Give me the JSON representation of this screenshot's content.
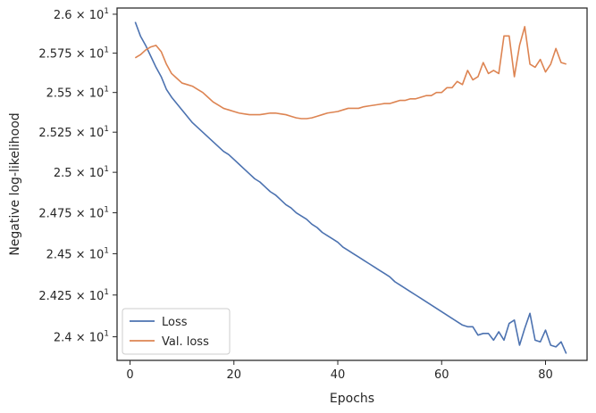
{
  "chart_data": {
    "type": "line",
    "title": "",
    "xlabel": "Epochs",
    "ylabel": "Negative log-likelihood",
    "xlim": [
      -2.5,
      88
    ],
    "ylim": [
      23.86,
      26.04
    ],
    "y_scale": "log",
    "grid": false,
    "legend_position": "lower-left",
    "x_ticks": [
      0,
      20,
      40,
      60,
      80
    ],
    "x_tick_labels": [
      "0",
      "20",
      "40",
      "60",
      "80"
    ],
    "y_ticks": [
      24.0,
      24.25,
      24.5,
      24.75,
      25.0,
      25.25,
      25.5,
      25.75,
      26.0
    ],
    "y_tick_labels": [
      {
        "mantissa": "2.4",
        "base": "10",
        "exp": "1"
      },
      {
        "mantissa": "2.425",
        "base": "10",
        "exp": "1"
      },
      {
        "mantissa": "2.45",
        "base": "10",
        "exp": "1"
      },
      {
        "mantissa": "2.475",
        "base": "10",
        "exp": "1"
      },
      {
        "mantissa": "2.5",
        "base": "10",
        "exp": "1"
      },
      {
        "mantissa": "2.525",
        "base": "10",
        "exp": "1"
      },
      {
        "mantissa": "2.55",
        "base": "10",
        "exp": "1"
      },
      {
        "mantissa": "2.575",
        "base": "10",
        "exp": "1"
      },
      {
        "mantissa": "2.6",
        "base": "10",
        "exp": "1"
      }
    ],
    "x": [
      1,
      2,
      3,
      4,
      5,
      6,
      7,
      8,
      9,
      10,
      11,
      12,
      13,
      14,
      15,
      16,
      17,
      18,
      19,
      20,
      21,
      22,
      23,
      24,
      25,
      26,
      27,
      28,
      29,
      30,
      31,
      32,
      33,
      34,
      35,
      36,
      37,
      38,
      39,
      40,
      41,
      42,
      43,
      44,
      45,
      46,
      47,
      48,
      49,
      50,
      51,
      52,
      53,
      54,
      55,
      56,
      57,
      58,
      59,
      60,
      61,
      62,
      63,
      64,
      65,
      66,
      67,
      68,
      69,
      70,
      71,
      72,
      73,
      74,
      75,
      76,
      77,
      78,
      79,
      80,
      81,
      82,
      83,
      84
    ],
    "series": [
      {
        "name": "Loss",
        "color": "#4c72b0",
        "values": [
          25.95,
          25.86,
          25.8,
          25.73,
          25.66,
          25.6,
          25.52,
          25.47,
          25.43,
          25.39,
          25.35,
          25.31,
          25.28,
          25.25,
          25.22,
          25.19,
          25.16,
          25.13,
          25.11,
          25.08,
          25.05,
          25.02,
          24.99,
          24.96,
          24.94,
          24.91,
          24.88,
          24.86,
          24.83,
          24.8,
          24.78,
          24.75,
          24.73,
          24.71,
          24.68,
          24.66,
          24.63,
          24.61,
          24.59,
          24.57,
          24.54,
          24.52,
          24.5,
          24.48,
          24.46,
          24.44,
          24.42,
          24.4,
          24.38,
          24.36,
          24.33,
          24.31,
          24.29,
          24.27,
          24.25,
          24.23,
          24.21,
          24.19,
          24.17,
          24.15,
          24.13,
          24.11,
          24.09,
          24.07,
          24.06,
          24.06,
          24.01,
          24.02,
          24.02,
          23.98,
          24.03,
          23.98,
          24.08,
          24.1,
          23.95,
          24.05,
          24.14,
          23.98,
          23.97,
          24.04,
          23.95,
          23.94,
          23.97,
          23.9
        ]
      },
      {
        "name": "Val. loss",
        "color": "#dd8452",
        "values": [
          25.72,
          25.74,
          25.77,
          25.79,
          25.8,
          25.76,
          25.68,
          25.62,
          25.59,
          25.56,
          25.55,
          25.54,
          25.52,
          25.5,
          25.47,
          25.44,
          25.42,
          25.4,
          25.39,
          25.38,
          25.37,
          25.365,
          25.36,
          25.36,
          25.36,
          25.365,
          25.37,
          25.37,
          25.365,
          25.36,
          25.35,
          25.34,
          25.335,
          25.335,
          25.34,
          25.35,
          25.36,
          25.37,
          25.375,
          25.38,
          25.39,
          25.4,
          25.4,
          25.4,
          25.41,
          25.415,
          25.42,
          25.425,
          25.43,
          25.43,
          25.44,
          25.45,
          25.45,
          25.46,
          25.46,
          25.47,
          25.48,
          25.48,
          25.5,
          25.5,
          25.53,
          25.53,
          25.57,
          25.55,
          25.64,
          25.58,
          25.6,
          25.69,
          25.62,
          25.64,
          25.62,
          25.86,
          25.86,
          25.6,
          25.8,
          25.92,
          25.68,
          25.66,
          25.71,
          25.63,
          25.68,
          25.78,
          25.69,
          25.68
        ]
      }
    ]
  }
}
